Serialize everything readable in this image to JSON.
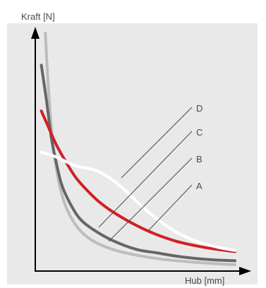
{
  "chart_data": {
    "type": "line",
    "title": "",
    "ylabel": "Kraft [N]",
    "xlabel": "Hub [mm]",
    "xlim": [
      0,
      10
    ],
    "ylim": [
      0,
      10
    ],
    "grid": false,
    "x_ticks": [],
    "y_ticks": [],
    "colors": {
      "background": "#e9e9e9",
      "axis": "#000000"
    },
    "series": [
      {
        "name": "A",
        "color": "#bdbdbd",
        "stroke": 4,
        "x": [
          0.5,
          0.65,
          0.85,
          1.1,
          1.4,
          1.8,
          2.3,
          3.0,
          4.0,
          5.0,
          6.0,
          7.0,
          8.0,
          9.0,
          9.9
        ],
        "y": [
          10.4,
          8.0,
          5.8,
          4.2,
          3.1,
          2.3,
          1.7,
          1.25,
          0.9,
          0.7,
          0.55,
          0.45,
          0.38,
          0.32,
          0.28
        ]
      },
      {
        "name": "B",
        "color": "#666666",
        "stroke": 4,
        "x": [
          0.3,
          0.55,
          0.8,
          1.0,
          1.3,
          1.7,
          2.2,
          2.9,
          3.8,
          5.0,
          6.0,
          7.0,
          8.0,
          9.0,
          9.9
        ],
        "y": [
          9.0,
          7.5,
          5.8,
          4.9,
          3.8,
          3.0,
          2.3,
          1.8,
          1.35,
          0.95,
          0.8,
          0.65,
          0.55,
          0.48,
          0.45
        ]
      },
      {
        "name": "C",
        "color": "#d21f26",
        "stroke": 4,
        "x": [
          0.3,
          0.6,
          1.0,
          1.5,
          2.0,
          2.6,
          3.2,
          4.0,
          5.0,
          6.0,
          7.0,
          8.0,
          9.0,
          9.9
        ],
        "y": [
          7.0,
          6.4,
          5.6,
          4.8,
          4.1,
          3.5,
          3.0,
          2.5,
          2.0,
          1.6,
          1.3,
          1.1,
          0.95,
          0.85
        ]
      },
      {
        "name": "D",
        "color": "#ffffff",
        "stroke": 4,
        "x": [
          0.3,
          1.0,
          2.0,
          3.0,
          3.8,
          4.5,
          5.2,
          6.0,
          7.0,
          8.0,
          9.0,
          9.9
        ],
        "y": [
          5.2,
          5.0,
          4.6,
          4.4,
          4.0,
          3.5,
          2.9,
          2.3,
          1.7,
          1.3,
          1.05,
          0.9
        ]
      }
    ],
    "annotations": [
      {
        "text": "D"
      },
      {
        "text": "C"
      },
      {
        "text": "B"
      },
      {
        "text": "A"
      }
    ]
  }
}
